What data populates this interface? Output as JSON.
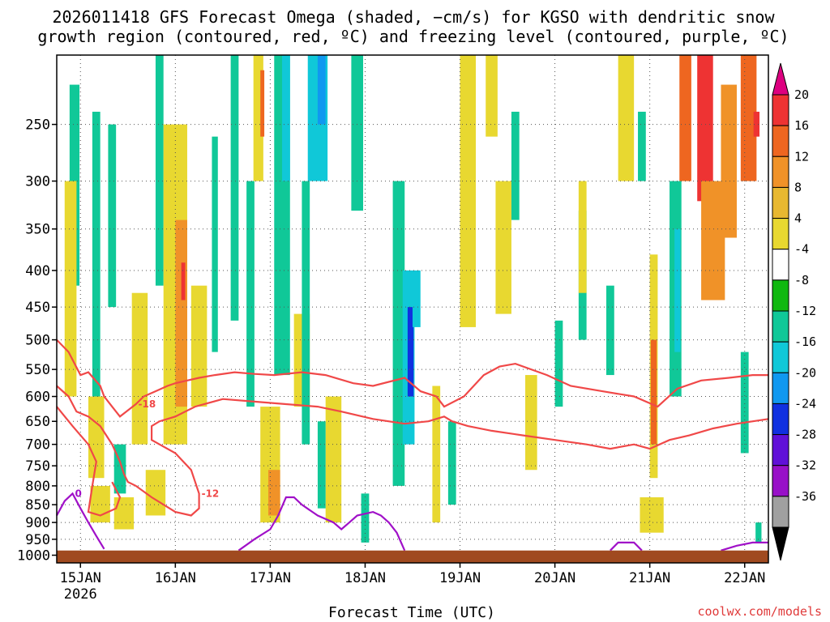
{
  "title_lines": [
    "2026011418 GFS Forecast Omega (shaded, −cm/s) for KGSO with dendritic snow",
    "growth region (contoured, red, ºC) and freezing level (contoured, purple, ºC)"
  ],
  "credit": "coolwx.com/models",
  "chart_data": {
    "type": "heatmap",
    "title": "2026011418 GFS Forecast Omega (shaded, −cm/s) for KGSO with dendritic snow growth region (contoured, red, ºC) and freezing level (contoured, purple, ºC)",
    "xlabel": "Forecast Time (UTC)",
    "ylabel": "",
    "x_ticks": [
      {
        "label": "15JAN",
        "sublabel": "2026",
        "hour": 6
      },
      {
        "label": "16JAN",
        "sublabel": "",
        "hour": 30
      },
      {
        "label": "17JAN",
        "sublabel": "",
        "hour": 54
      },
      {
        "label": "18JAN",
        "sublabel": "",
        "hour": 78
      },
      {
        "label": "19JAN",
        "sublabel": "",
        "hour": 102
      },
      {
        "label": "20JAN",
        "sublabel": "",
        "hour": 126
      },
      {
        "label": "21JAN",
        "sublabel": "",
        "hour": 150
      },
      {
        "label": "22JAN",
        "sublabel": "",
        "hour": 174
      }
    ],
    "xlim_hours": [
      0,
      180
    ],
    "y_levels_hpa": [
      250,
      300,
      350,
      400,
      450,
      500,
      550,
      600,
      650,
      700,
      750,
      800,
      850,
      900,
      950,
      1000
    ],
    "ylim_hpa": [
      200,
      1025
    ],
    "y_scale": "log-pressure",
    "grid": true,
    "ground_top_hpa": 985,
    "colorbar": {
      "labels": [
        "20",
        "16",
        "12",
        "8",
        "4",
        "-4",
        "-8",
        "-12",
        "-16",
        "-20",
        "-24",
        "-28",
        "-32",
        "-36"
      ],
      "colors": [
        "#dd0080",
        "#ee3333",
        "#ee6620",
        "#f09228",
        "#e8b830",
        "#e8d830",
        "#ffffff",
        "#10b810",
        "#10c898",
        "#10c8d8",
        "#1098f0",
        "#1030e0",
        "#6010d8",
        "#9810c8",
        "#a0a0a0",
        "#000000"
      ]
    },
    "omega_cells": [
      {
        "hour": 4.5,
        "p1": 220,
        "p2": 420,
        "w": 2.5,
        "v": -8
      },
      {
        "hour": 3.5,
        "p1": 300,
        "p2": 600,
        "w": 3,
        "v": 6
      },
      {
        "hour": 10,
        "p1": 240,
        "p2": 600,
        "w": 2,
        "v": -8
      },
      {
        "hour": 14,
        "p1": 250,
        "p2": 450,
        "w": 2,
        "v": -8
      },
      {
        "hour": 10,
        "p1": 600,
        "p2": 780,
        "w": 4,
        "v": 6
      },
      {
        "hour": 11,
        "p1": 800,
        "p2": 900,
        "w": 5,
        "v": 6
      },
      {
        "hour": 16,
        "p1": 700,
        "p2": 820,
        "w": 3,
        "v": -8
      },
      {
        "hour": 17,
        "p1": 830,
        "p2": 920,
        "w": 5,
        "v": 6
      },
      {
        "hour": 21,
        "p1": 430,
        "p2": 700,
        "w": 4,
        "v": 6
      },
      {
        "hour": 26,
        "p1": 200,
        "p2": 420,
        "w": 2,
        "v": -8
      },
      {
        "hour": 30,
        "p1": 250,
        "p2": 700,
        "w": 6,
        "v": 6
      },
      {
        "hour": 31.5,
        "p1": 340,
        "p2": 620,
        "w": 3,
        "v": 10
      },
      {
        "hour": 32,
        "p1": 390,
        "p2": 440,
        "w": 1,
        "v": 18
      },
      {
        "hour": 25,
        "p1": 760,
        "p2": 880,
        "w": 5,
        "v": 6
      },
      {
        "hour": 36,
        "p1": 420,
        "p2": 620,
        "w": 4,
        "v": 6
      },
      {
        "hour": 40,
        "p1": 260,
        "p2": 520,
        "w": 1.5,
        "v": -8
      },
      {
        "hour": 45,
        "p1": 200,
        "p2": 470,
        "w": 2,
        "v": -8
      },
      {
        "hour": 49,
        "p1": 300,
        "p2": 620,
        "w": 2,
        "v": -8
      },
      {
        "hour": 51,
        "p1": 200,
        "p2": 300,
        "w": 2.5,
        "v": 6
      },
      {
        "hour": 52,
        "p1": 210,
        "p2": 260,
        "w": 1,
        "v": 12
      },
      {
        "hour": 57,
        "p1": 200,
        "p2": 560,
        "w": 4,
        "v": -8
      },
      {
        "hour": 58,
        "p1": 200,
        "p2": 300,
        "w": 2,
        "v": -12
      },
      {
        "hour": 54,
        "p1": 620,
        "p2": 900,
        "w": 5,
        "v": 6
      },
      {
        "hour": 55,
        "p1": 760,
        "p2": 880,
        "w": 3,
        "v": 10
      },
      {
        "hour": 62,
        "p1": 460,
        "p2": 620,
        "w": 4,
        "v": 6
      },
      {
        "hour": 66,
        "p1": 200,
        "p2": 300,
        "w": 5,
        "v": -12
      },
      {
        "hour": 67,
        "p1": 200,
        "p2": 250,
        "w": 2,
        "v": -16
      },
      {
        "hour": 63,
        "p1": 300,
        "p2": 700,
        "w": 2,
        "v": -8
      },
      {
        "hour": 70,
        "p1": 600,
        "p2": 900,
        "w": 4,
        "v": 6
      },
      {
        "hour": 67,
        "p1": 650,
        "p2": 860,
        "w": 2,
        "v": -8
      },
      {
        "hour": 76,
        "p1": 200,
        "p2": 330,
        "w": 3,
        "v": -8
      },
      {
        "hour": 78,
        "p1": 820,
        "p2": 960,
        "w": 2,
        "v": -8
      },
      {
        "hour": 86.5,
        "p1": 300,
        "p2": 800,
        "w": 3,
        "v": -8
      },
      {
        "hour": 89,
        "p1": 400,
        "p2": 700,
        "w": 3,
        "v": -12
      },
      {
        "hour": 89.5,
        "p1": 450,
        "p2": 600,
        "w": 1.5,
        "v": -20
      },
      {
        "hour": 91,
        "p1": 400,
        "p2": 480,
        "w": 2,
        "v": -12
      },
      {
        "hour": 96,
        "p1": 580,
        "p2": 900,
        "w": 2,
        "v": 6
      },
      {
        "hour": 100,
        "p1": 650,
        "p2": 850,
        "w": 2,
        "v": -8
      },
      {
        "hour": 104,
        "p1": 200,
        "p2": 480,
        "w": 4,
        "v": 6
      },
      {
        "hour": 110,
        "p1": 200,
        "p2": 260,
        "w": 3,
        "v": 6
      },
      {
        "hour": 113,
        "p1": 300,
        "p2": 460,
        "w": 4,
        "v": 6
      },
      {
        "hour": 116,
        "p1": 240,
        "p2": 340,
        "w": 2,
        "v": -8
      },
      {
        "hour": 120,
        "p1": 560,
        "p2": 760,
        "w": 3,
        "v": 6
      },
      {
        "hour": 127,
        "p1": 470,
        "p2": 620,
        "w": 2,
        "v": -8
      },
      {
        "hour": 133,
        "p1": 330,
        "p2": 500,
        "w": 2,
        "v": -8
      },
      {
        "hour": 133,
        "p1": 300,
        "p2": 430,
        "w": 2,
        "v": 6
      },
      {
        "hour": 140,
        "p1": 420,
        "p2": 560,
        "w": 2,
        "v": -8
      },
      {
        "hour": 144,
        "p1": 200,
        "p2": 300,
        "w": 4,
        "v": 6
      },
      {
        "hour": 148,
        "p1": 240,
        "p2": 300,
        "w": 2,
        "v": -8
      },
      {
        "hour": 151,
        "p1": 380,
        "p2": 780,
        "w": 2,
        "v": 6
      },
      {
        "hour": 151,
        "p1": 500,
        "p2": 700,
        "w": 1.5,
        "v": 12
      },
      {
        "hour": 150.5,
        "p1": 830,
        "p2": 930,
        "w": 6,
        "v": 6
      },
      {
        "hour": 156.5,
        "p1": 300,
        "p2": 600,
        "w": 3,
        "v": -8
      },
      {
        "hour": 157,
        "p1": 350,
        "p2": 520,
        "w": 1.5,
        "v": -12
      },
      {
        "hour": 159,
        "p1": 200,
        "p2": 300,
        "w": 3,
        "v": 12
      },
      {
        "hour": 164,
        "p1": 200,
        "p2": 320,
        "w": 4,
        "v": 16
      },
      {
        "hour": 166,
        "p1": 300,
        "p2": 440,
        "w": 6,
        "v": 10
      },
      {
        "hour": 170,
        "p1": 220,
        "p2": 360,
        "w": 4,
        "v": 8
      },
      {
        "hour": 175,
        "p1": 200,
        "p2": 300,
        "w": 4,
        "v": 12
      },
      {
        "hour": 177,
        "p1": 240,
        "p2": 260,
        "w": 1.5,
        "v": 18
      },
      {
        "hour": 174,
        "p1": 520,
        "p2": 720,
        "w": 2,
        "v": -8
      },
      {
        "hour": 177.5,
        "p1": 900,
        "p2": 960,
        "w": 1.5,
        "v": -8
      }
    ],
    "contours": [
      {
        "color": "#f04848",
        "label": "-18",
        "label_at": 8,
        "points": [
          [
            0,
            500
          ],
          [
            3,
            520
          ],
          [
            6,
            560
          ],
          [
            8,
            555
          ],
          [
            11,
            580
          ],
          [
            12,
            600
          ],
          [
            14,
            620
          ],
          [
            16,
            640
          ],
          [
            20,
            615
          ],
          [
            22,
            600
          ],
          [
            25,
            590
          ],
          [
            28,
            580
          ],
          [
            30,
            575
          ],
          [
            33,
            570
          ],
          [
            36,
            565
          ],
          [
            40,
            560
          ],
          [
            45,
            555
          ],
          [
            50,
            558
          ],
          [
            55,
            560
          ],
          [
            62,
            555
          ],
          [
            68,
            560
          ],
          [
            75,
            575
          ],
          [
            80,
            580
          ],
          [
            88,
            565
          ],
          [
            92,
            590
          ],
          [
            96,
            600
          ],
          [
            98,
            620
          ],
          [
            103,
            600
          ],
          [
            108,
            560
          ],
          [
            112,
            545
          ],
          [
            116,
            540
          ],
          [
            124,
            560
          ],
          [
            130,
            580
          ],
          [
            138,
            590
          ],
          [
            146,
            600
          ],
          [
            152,
            620
          ],
          [
            157,
            585
          ],
          [
            163,
            570
          ],
          [
            170,
            565
          ],
          [
            176,
            560
          ],
          [
            180,
            560
          ]
        ]
      },
      {
        "color": "#f04848",
        "label": "-12",
        "label_at": 14,
        "points": [
          [
            0,
            580
          ],
          [
            3,
            600
          ],
          [
            5,
            630
          ],
          [
            8,
            640
          ],
          [
            11,
            660
          ],
          [
            14,
            700
          ],
          [
            16,
            740
          ],
          [
            17,
            770
          ],
          [
            18,
            790
          ],
          [
            20,
            800
          ],
          [
            24,
            830
          ],
          [
            30,
            870
          ],
          [
            34,
            880
          ],
          [
            36,
            860
          ],
          [
            36,
            820
          ],
          [
            34,
            760
          ],
          [
            30,
            720
          ],
          [
            26,
            700
          ],
          [
            24,
            690
          ],
          [
            24,
            660
          ],
          [
            26,
            650
          ],
          [
            30,
            640
          ],
          [
            35,
            620
          ],
          [
            42,
            605
          ],
          [
            50,
            610
          ],
          [
            58,
            615
          ],
          [
            66,
            620
          ],
          [
            72,
            630
          ],
          [
            80,
            645
          ],
          [
            88,
            655
          ],
          [
            94,
            650
          ],
          [
            98,
            640
          ],
          [
            100,
            650
          ],
          [
            104,
            660
          ],
          [
            110,
            670
          ],
          [
            118,
            680
          ],
          [
            126,
            690
          ],
          [
            134,
            700
          ],
          [
            140,
            710
          ],
          [
            146,
            700
          ],
          [
            150,
            710
          ],
          [
            155,
            690
          ],
          [
            160,
            680
          ],
          [
            166,
            665
          ],
          [
            172,
            655
          ],
          [
            180,
            645
          ]
        ]
      },
      {
        "color": "#f04848",
        "label": "",
        "label_at": 0,
        "points": [
          [
            0,
            620
          ],
          [
            4,
            660
          ],
          [
            8,
            700
          ],
          [
            10,
            740
          ],
          [
            9,
            800
          ],
          [
            8,
            870
          ],
          [
            11,
            880
          ],
          [
            15,
            860
          ],
          [
            16,
            830
          ],
          [
            14,
            790
          ]
        ]
      },
      {
        "color": "#a010c8",
        "label": "0",
        "label_at": 2,
        "points": [
          [
            0,
            880
          ],
          [
            2,
            840
          ],
          [
            4,
            820
          ],
          [
            6,
            860
          ],
          [
            8,
            900
          ],
          [
            10,
            940
          ],
          [
            12,
            980
          ]
        ]
      },
      {
        "color": "#a010c8",
        "label": "",
        "label_at": 0,
        "points": [
          [
            46,
            985
          ],
          [
            50,
            950
          ],
          [
            54,
            920
          ],
          [
            56,
            880
          ],
          [
            58,
            830
          ],
          [
            60,
            830
          ],
          [
            62,
            850
          ],
          [
            66,
            880
          ],
          [
            70,
            900
          ],
          [
            72,
            920
          ],
          [
            74,
            900
          ],
          [
            76,
            880
          ],
          [
            80,
            870
          ],
          [
            82,
            880
          ],
          [
            84,
            900
          ],
          [
            86,
            930
          ],
          [
            88,
            985
          ]
        ]
      },
      {
        "color": "#a010c8",
        "label": "",
        "label_at": 0,
        "points": [
          [
            140,
            985
          ],
          [
            142,
            960
          ],
          [
            146,
            960
          ],
          [
            148,
            985
          ]
        ]
      },
      {
        "color": "#a010c8",
        "label": "",
        "label_at": 0,
        "points": [
          [
            168,
            985
          ],
          [
            172,
            970
          ],
          [
            176,
            960
          ],
          [
            180,
            960
          ]
        ]
      }
    ]
  }
}
